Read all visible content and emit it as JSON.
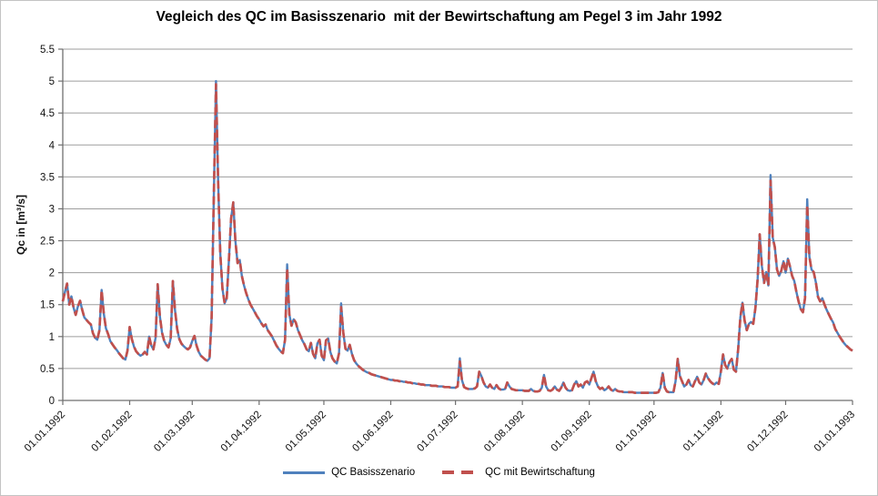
{
  "title": "Vegleich des QC im Basisszenario  mit der Bewirtschaftung am Pegel 3 im Jahr 1992",
  "chart_data": {
    "type": "line",
    "title": "Vegleich des QC im Basisszenario mit der Bewirtschaftung am Pegel 3 im Jahr 1992",
    "xlabel": "",
    "ylabel": "Qc in [m³/s]",
    "ylim": [
      0,
      5.5
    ],
    "x_range_days": 366,
    "grid": "horizontal",
    "legend_position": "bottom",
    "colors": {
      "grid": "#9d9d9d",
      "axis": "#6f6f6f",
      "tick_text": "#111111",
      "series1": "#4F81BD",
      "series2": "#C0504D"
    },
    "ytick_labels": [
      "0",
      "0.5",
      "1",
      "1.5",
      "2",
      "2.5",
      "3",
      "3.5",
      "4",
      "4.5",
      "5",
      "5.5"
    ],
    "yticks": [
      0,
      0.5,
      1,
      1.5,
      2,
      2.5,
      3,
      3.5,
      4,
      4.5,
      5,
      5.5
    ],
    "xticks": [
      {
        "label": "01.01.1992",
        "day": 0
      },
      {
        "label": "01.02.1992",
        "day": 31
      },
      {
        "label": "01.03.1992",
        "day": 60
      },
      {
        "label": "01.04.1992",
        "day": 91
      },
      {
        "label": "01.05.1992",
        "day": 121
      },
      {
        "label": "01.06.1992",
        "day": 152
      },
      {
        "label": "01.07.1992",
        "day": 182
      },
      {
        "label": "01.08.1992",
        "day": 213
      },
      {
        "label": "01.09.1992",
        "day": 244
      },
      {
        "label": "01.10.1992",
        "day": 274
      },
      {
        "label": "01.11.1992",
        "day": 305
      },
      {
        "label": "01.12.1992",
        "day": 335
      },
      {
        "label": "01.01.1993",
        "day": 366
      }
    ],
    "values_daily": [
      1.55,
      1.7,
      1.83,
      1.5,
      1.63,
      1.45,
      1.34,
      1.47,
      1.56,
      1.42,
      1.3,
      1.26,
      1.22,
      1.19,
      1.05,
      0.98,
      0.95,
      1.1,
      1.73,
      1.36,
      1.13,
      1.04,
      0.93,
      0.88,
      0.83,
      0.79,
      0.74,
      0.7,
      0.66,
      0.64,
      0.78,
      1.15,
      0.96,
      0.84,
      0.77,
      0.73,
      0.7,
      0.72,
      0.76,
      0.72,
      1.0,
      0.86,
      0.8,
      0.98,
      1.82,
      1.32,
      1.06,
      0.93,
      0.87,
      0.83,
      0.97,
      1.87,
      1.42,
      1.12,
      0.96,
      0.89,
      0.85,
      0.82,
      0.8,
      0.83,
      0.93,
      1.01,
      0.86,
      0.76,
      0.7,
      0.67,
      0.64,
      0.62,
      0.66,
      1.3,
      3.2,
      5.0,
      3.4,
      2.3,
      1.75,
      1.52,
      1.6,
      2.2,
      2.85,
      3.1,
      2.5,
      2.15,
      2.2,
      1.95,
      1.8,
      1.68,
      1.58,
      1.5,
      1.44,
      1.38,
      1.32,
      1.27,
      1.21,
      1.16,
      1.19,
      1.1,
      1.05,
      1.0,
      0.93,
      0.86,
      0.81,
      0.77,
      0.74,
      0.95,
      2.13,
      1.35,
      1.17,
      1.27,
      1.22,
      1.1,
      1.02,
      0.94,
      0.88,
      0.8,
      0.77,
      0.9,
      0.73,
      0.66,
      0.89,
      0.95,
      0.7,
      0.63,
      0.94,
      0.97,
      0.76,
      0.66,
      0.61,
      0.58,
      0.74,
      1.52,
      1.06,
      0.81,
      0.78,
      0.87,
      0.73,
      0.63,
      0.58,
      0.54,
      0.51,
      0.48,
      0.46,
      0.44,
      0.43,
      0.41,
      0.4,
      0.39,
      0.38,
      0.37,
      0.36,
      0.35,
      0.34,
      0.33,
      0.32,
      0.32,
      0.31,
      0.31,
      0.3,
      0.3,
      0.29,
      0.29,
      0.28,
      0.28,
      0.27,
      0.27,
      0.26,
      0.26,
      0.25,
      0.25,
      0.24,
      0.24,
      0.24,
      0.23,
      0.23,
      0.23,
      0.22,
      0.22,
      0.22,
      0.21,
      0.21,
      0.21,
      0.2,
      0.2,
      0.2,
      0.22,
      0.66,
      0.32,
      0.21,
      0.19,
      0.18,
      0.18,
      0.18,
      0.19,
      0.22,
      0.45,
      0.38,
      0.28,
      0.22,
      0.2,
      0.25,
      0.2,
      0.18,
      0.24,
      0.19,
      0.17,
      0.17,
      0.18,
      0.28,
      0.22,
      0.18,
      0.17,
      0.16,
      0.16,
      0.16,
      0.16,
      0.15,
      0.15,
      0.15,
      0.18,
      0.15,
      0.14,
      0.14,
      0.15,
      0.2,
      0.4,
      0.22,
      0.16,
      0.15,
      0.17,
      0.22,
      0.17,
      0.15,
      0.2,
      0.28,
      0.2,
      0.16,
      0.15,
      0.16,
      0.25,
      0.3,
      0.22,
      0.25,
      0.2,
      0.28,
      0.3,
      0.25,
      0.35,
      0.45,
      0.3,
      0.22,
      0.18,
      0.2,
      0.16,
      0.18,
      0.22,
      0.17,
      0.15,
      0.18,
      0.15,
      0.14,
      0.14,
      0.13,
      0.13,
      0.13,
      0.13,
      0.13,
      0.12,
      0.12,
      0.12,
      0.12,
      0.12,
      0.12,
      0.12,
      0.12,
      0.12,
      0.12,
      0.12,
      0.13,
      0.2,
      0.43,
      0.2,
      0.14,
      0.13,
      0.13,
      0.13,
      0.3,
      0.65,
      0.38,
      0.3,
      0.22,
      0.25,
      0.32,
      0.24,
      0.22,
      0.3,
      0.37,
      0.28,
      0.25,
      0.32,
      0.42,
      0.35,
      0.3,
      0.27,
      0.25,
      0.28,
      0.26,
      0.45,
      0.72,
      0.55,
      0.5,
      0.6,
      0.65,
      0.48,
      0.45,
      0.8,
      1.3,
      1.53,
      1.25,
      1.1,
      1.2,
      1.23,
      1.2,
      1.45,
      1.9,
      2.6,
      2.1,
      1.84,
      2.01,
      1.8,
      3.53,
      2.55,
      2.4,
      2.05,
      1.95,
      2.03,
      2.18,
      2.0,
      2.22,
      2.1,
      1.95,
      1.87,
      1.7,
      1.55,
      1.43,
      1.38,
      1.6,
      3.15,
      2.25,
      2.05,
      2.01,
      1.85,
      1.62,
      1.55,
      1.6,
      1.5,
      1.42,
      1.35,
      1.28,
      1.22,
      1.12,
      1.06,
      1.0,
      0.95,
      0.9,
      0.86,
      0.83,
      0.8,
      0.78
    ],
    "series": [
      {
        "name": "QC Basisszenario",
        "color": "#4F81BD",
        "line_style": "solid",
        "uses": "values_daily"
      },
      {
        "name": "QC mit Bewirtschaftung",
        "color": "#C0504D",
        "line_style": "dashed",
        "uses": "values_daily",
        "overrides": {
          "71": 4.95,
          "104": 2.07,
          "129": 1.46,
          "184": 0.61,
          "328": 3.44,
          "345": 3.06
        }
      }
    ]
  }
}
